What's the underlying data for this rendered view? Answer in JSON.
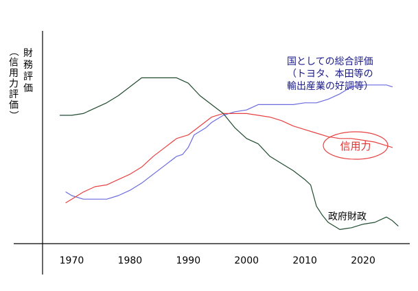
{
  "chart_data": {
    "type": "line",
    "title": "",
    "xlabel": "",
    "ylabel": "財務評価（信用力評価）",
    "ylabel_vertical_parts": [
      "財務評価",
      "（信用力評価）"
    ],
    "x_ticks": [
      "1970",
      "1980",
      "1990",
      "2000",
      "2010",
      "2020"
    ],
    "xlim": [
      1965,
      2028
    ],
    "ylim": [
      0,
      100
    ],
    "grid": false,
    "series": [
      {
        "name": "国としての総合評価（トヨタ、本田等の輸出産業の好調等）",
        "label_lines": [
          "国としての総合評価",
          "（トヨタ、本田等の",
          "輸出産業の好調等）"
        ],
        "color": "#6a6ae0",
        "x": [
          1969,
          1970,
          1972,
          1974,
          1976,
          1978,
          1980,
          1982,
          1984,
          1986,
          1988,
          1989,
          1990,
          1991,
          1992,
          1993,
          1994,
          1996,
          1998,
          2000,
          2002,
          2004,
          2006,
          2008,
          2010,
          2012,
          2014,
          2016,
          2018,
          2020,
          2022,
          2024,
          2025
        ],
        "values": [
          27,
          25,
          23,
          23,
          23,
          25,
          28,
          32,
          37,
          42,
          47,
          48,
          52,
          59,
          61,
          63,
          66,
          70,
          72,
          73,
          76,
          76,
          76,
          76,
          77,
          77,
          79,
          82,
          86,
          87,
          87,
          87,
          86
        ]
      },
      {
        "name": "信用力",
        "color": "#e84040",
        "x": [
          1969,
          1970,
          1972,
          1974,
          1976,
          1978,
          1980,
          1982,
          1984,
          1986,
          1988,
          1990,
          1992,
          1994,
          1996,
          1998,
          2000,
          2002,
          2004,
          2006,
          2008,
          2010,
          2012,
          2014,
          2016,
          2018,
          2020,
          2022,
          2024,
          2025
        ],
        "values": [
          21,
          23,
          27,
          30,
          31,
          34,
          37,
          41,
          47,
          52,
          57,
          59,
          64,
          69,
          71,
          71,
          71,
          70,
          69,
          67,
          64,
          62,
          60,
          58,
          57,
          57,
          56,
          55,
          53,
          52
        ]
      },
      {
        "name": "政府財政",
        "color": "#1e4a2e",
        "x": [
          1968,
          1970,
          1972,
          1974,
          1976,
          1978,
          1980,
          1982,
          1984,
          1986,
          1988,
          1990,
          1992,
          1994,
          1996,
          1998,
          2000,
          2002,
          2004,
          2006,
          2008,
          2010,
          2011,
          2012,
          2013,
          2014,
          2016,
          2018,
          2020,
          2022,
          2024,
          2025,
          2026
        ],
        "values": [
          70,
          70,
          71,
          74,
          77,
          81,
          86,
          91,
          91,
          91,
          91,
          88,
          81,
          76,
          71,
          63,
          57,
          54,
          47,
          43,
          39,
          34,
          31,
          19,
          14,
          10,
          6,
          7,
          9,
          10,
          13,
          11,
          8
        ]
      }
    ],
    "annotations": [
      {
        "text": "信用力",
        "series": "信用力",
        "circled": true
      }
    ]
  }
}
